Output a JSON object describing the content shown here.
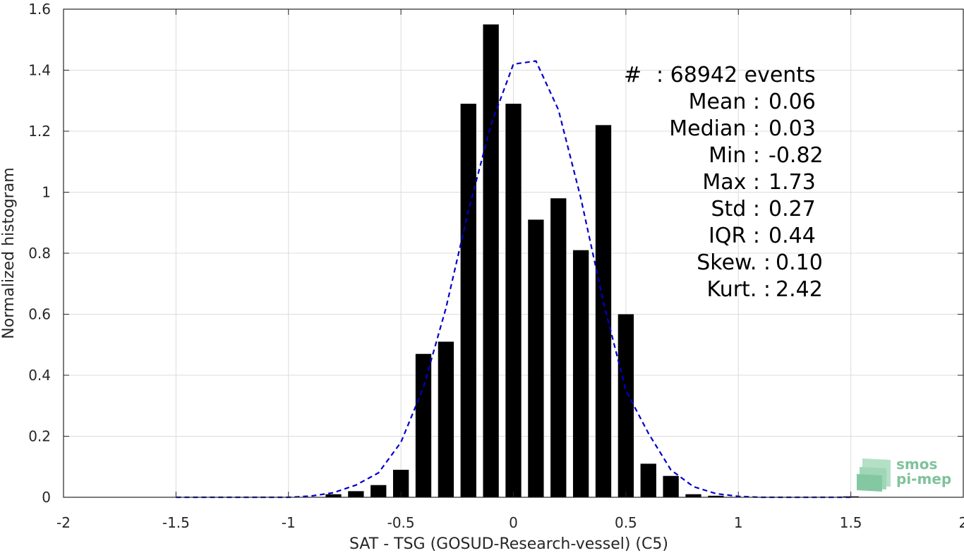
{
  "chart_data": {
    "type": "bar",
    "xlabel": "SAT - TSG (GOSUD-Research-vessel) (C5)",
    "ylabel": "Normalized histogram",
    "xlim": [
      -2,
      2
    ],
    "ylim": [
      0,
      1.6
    ],
    "x_ticks": [
      -2,
      -1.5,
      -1,
      -0.5,
      0,
      0.5,
      1,
      1.5,
      2
    ],
    "x_tick_labels": [
      "-2",
      "-1.5",
      "-1",
      "-0.5",
      "0",
      "0.5",
      "1",
      "1.5",
      "2"
    ],
    "y_ticks": [
      0,
      0.2,
      0.4,
      0.6,
      0.8,
      1,
      1.2,
      1.4,
      1.6
    ],
    "y_tick_labels": [
      "0",
      "0.2",
      "0.4",
      "0.6",
      "0.8",
      "1",
      "1.2",
      "1.4",
      "1.6"
    ],
    "grid": true,
    "bar_color": "#000000",
    "bar_width": 0.07,
    "bins": [
      {
        "x": -0.8,
        "y": 0.01
      },
      {
        "x": -0.7,
        "y": 0.02
      },
      {
        "x": -0.6,
        "y": 0.04
      },
      {
        "x": -0.5,
        "y": 0.09
      },
      {
        "x": -0.4,
        "y": 0.47
      },
      {
        "x": -0.3,
        "y": 0.51
      },
      {
        "x": -0.2,
        "y": 1.29
      },
      {
        "x": -0.1,
        "y": 1.55
      },
      {
        "x": 0.0,
        "y": 1.29
      },
      {
        "x": 0.1,
        "y": 0.91
      },
      {
        "x": 0.2,
        "y": 0.98
      },
      {
        "x": 0.3,
        "y": 0.81
      },
      {
        "x": 0.4,
        "y": 1.22
      },
      {
        "x": 0.5,
        "y": 0.6
      },
      {
        "x": 0.6,
        "y": 0.11
      },
      {
        "x": 0.7,
        "y": 0.07
      },
      {
        "x": 0.8,
        "y": 0.01
      },
      {
        "x": 0.9,
        "y": 0.005
      },
      {
        "x": 1.5,
        "y": 0.003
      }
    ],
    "fit_curve": {
      "color": "#0000cc",
      "style": "dashed",
      "x": [
        -1.5,
        -1.3,
        -1.1,
        -1.0,
        -0.9,
        -0.8,
        -0.7,
        -0.6,
        -0.5,
        -0.4,
        -0.3,
        -0.2,
        -0.1,
        0.0,
        0.1,
        0.2,
        0.3,
        0.4,
        0.5,
        0.6,
        0.7,
        0.8,
        0.9,
        1.0,
        1.1,
        1.3,
        1.5
      ],
      "y": [
        0.0,
        0.0,
        0.0,
        0.0,
        0.004,
        0.015,
        0.04,
        0.08,
        0.18,
        0.36,
        0.62,
        0.94,
        1.22,
        1.42,
        1.43,
        1.27,
        0.98,
        0.64,
        0.35,
        0.21,
        0.09,
        0.035,
        0.012,
        0.003,
        0.0,
        0.0,
        0.0
      ]
    }
  },
  "stats": {
    "count_prefix": "#",
    "count_value": ": 68942 events",
    "mean_label": "Mean :",
    "mean_value": "0.06",
    "median_label": "Median :",
    "median_value": "0.03",
    "min_label": "Min :",
    "min_value": "-0.82",
    "max_label": "Max :",
    "max_value": "1.73",
    "std_label": "Std :",
    "std_value": "0.27",
    "iqr_label": "IQR :",
    "iqr_value": "0.44",
    "skew_label": "Skew. :",
    "skew_value": "0.10",
    "kurt_label": "Kurt. :",
    "kurt_value": "2.42"
  },
  "logo": {
    "line1": "smos",
    "line2": "pi-mep",
    "color": "#7fc29b"
  }
}
